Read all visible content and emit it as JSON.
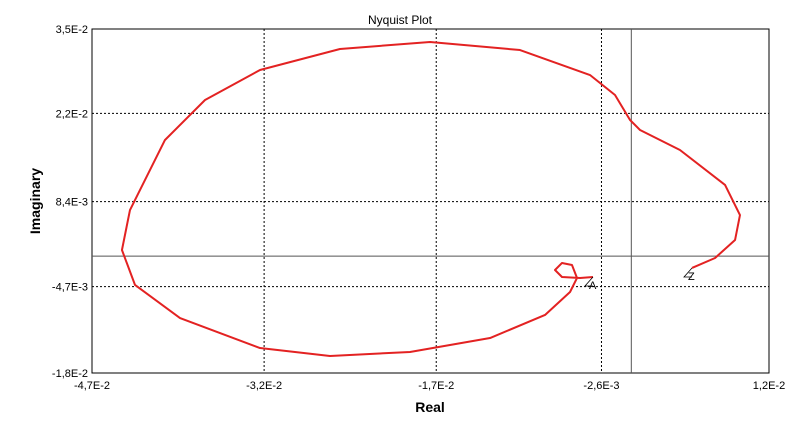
{
  "chart_data": {
    "type": "line",
    "title": "Nyquist Plot",
    "xlabel": "Real",
    "ylabel": "Imaginary",
    "color": "#e32222",
    "grid": true,
    "xlim": [
      -0.047,
      0.012
    ],
    "xticks": [
      {
        "value": -0.047,
        "label": "-4,7E-2"
      },
      {
        "value": -0.032,
        "label": "-3,2E-2"
      },
      {
        "value": -0.017,
        "label": "-1,7E-2"
      },
      {
        "value": -0.0026,
        "label": "-2,6E-3"
      },
      {
        "value": 0.012,
        "label": "1,2E-2"
      }
    ],
    "ylim": [
      -0.018,
      0.035
    ],
    "yticks": [
      {
        "value": -0.018,
        "label": "-1,8E-2"
      },
      {
        "value": -0.0047,
        "label": "-4,7E-3"
      },
      {
        "value": 0.0084,
        "label": "8,4E-3"
      },
      {
        "value": 0.022,
        "label": "2,2E-2"
      },
      {
        "value": 0.035,
        "label": "3,5E-2"
      }
    ],
    "x": [
      -0.00334,
      -0.00447,
      -0.00604,
      -0.00665,
      -0.00604,
      -0.00517,
      -0.00473,
      -0.00534,
      -0.00752,
      -0.01231,
      -0.01929,
      -0.02626,
      -0.03236,
      -0.03933,
      -0.04325,
      -0.04439,
      -0.04369,
      -0.04064,
      -0.03715,
      -0.03236,
      -0.02539,
      -0.01754,
      -0.0097,
      -0.0036,
      -0.00142,
      -0.00011,
      0.00076,
      0.00424,
      0.00817,
      0.00947,
      0.00904,
      0.0073,
      0.00529
    ],
    "values": [
      -0.00321,
      -0.00336,
      -0.00321,
      -0.00213,
      -0.00105,
      -0.00136,
      -0.00336,
      -0.00552,
      -0.00906,
      -0.01261,
      -0.01476,
      -0.01538,
      -0.01415,
      -0.00953,
      -0.00444,
      0.00095,
      0.00711,
      0.0179,
      0.02406,
      0.02868,
      0.03192,
      0.033,
      0.03176,
      0.02791,
      0.02483,
      0.02098,
      0.01944,
      0.01636,
      0.01097,
      0.00634,
      0.00249,
      -0.00028,
      -0.00182
    ],
    "annotations": [
      "A",
      "Z"
    ]
  }
}
